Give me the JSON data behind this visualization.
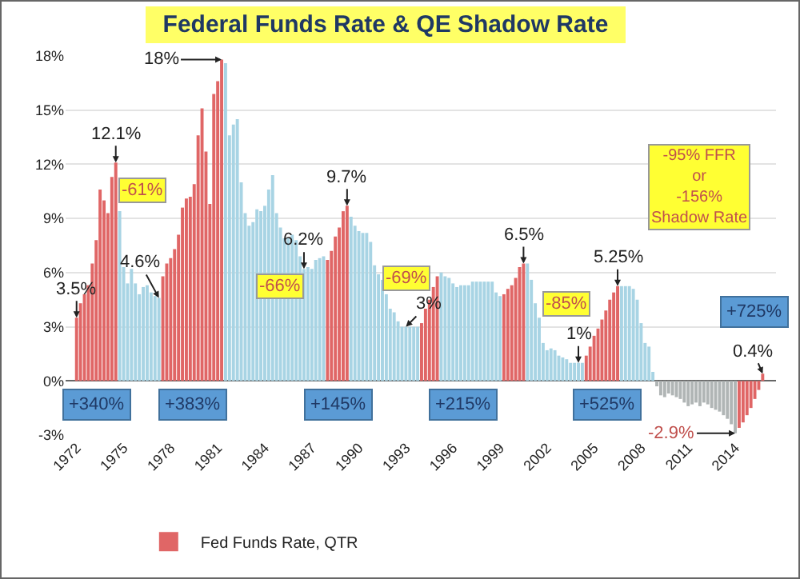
{
  "chart_data": {
    "type": "bar",
    "title": "Federal Funds Rate & QE Shadow Rate",
    "series": [
      {
        "name": "Fed Funds Rate, QTR",
        "x": [
          1972,
          1972.25,
          1972.5,
          1972.75,
          1973,
          1973.25,
          1973.5,
          1973.75,
          1974,
          1974.25,
          1974.5,
          1974.75,
          1975,
          1975.25,
          1975.5,
          1975.75,
          1976,
          1976.25,
          1976.5,
          1976.75,
          1977,
          1977.25,
          1977.5,
          1977.75,
          1978,
          1978.25,
          1978.5,
          1978.75,
          1979,
          1979.25,
          1979.5,
          1979.75,
          1980,
          1980.25,
          1980.5,
          1980.75,
          1981,
          1981.25,
          1981.5,
          1981.75,
          1982,
          1982.25,
          1982.5,
          1982.75,
          1983,
          1983.25,
          1983.5,
          1983.75,
          1984,
          1984.25,
          1984.5,
          1984.75,
          1985,
          1985.25,
          1985.5,
          1985.75,
          1986,
          1986.25,
          1986.5,
          1986.75,
          1987,
          1987.25,
          1987.5,
          1987.75,
          1988,
          1988.25,
          1988.5,
          1988.75,
          1989,
          1989.25,
          1989.5,
          1989.75,
          1990,
          1990.25,
          1990.5,
          1990.75,
          1991,
          1991.25,
          1991.5,
          1991.75,
          1992,
          1992.25,
          1992.5,
          1992.75,
          1993,
          1993.25,
          1993.5,
          1993.75,
          1994,
          1994.25,
          1994.5,
          1994.75,
          1995,
          1995.25,
          1995.5,
          1995.75,
          1996,
          1996.25,
          1996.5,
          1996.75,
          1997,
          1997.25,
          1997.5,
          1997.75,
          1998,
          1998.25,
          1998.5,
          1998.75,
          1999,
          1999.25,
          1999.5,
          1999.75,
          2000,
          2000.25,
          2000.5,
          2000.75,
          2001,
          2001.25,
          2001.5,
          2001.75,
          2002,
          2002.25,
          2002.5,
          2002.75,
          2003,
          2003.25,
          2003.5,
          2003.75,
          2004,
          2004.25,
          2004.5,
          2004.75,
          2005,
          2005.25,
          2005.5,
          2005.75,
          2006,
          2006.25,
          2006.5,
          2006.75,
          2007,
          2007.25,
          2007.5,
          2007.75,
          2008,
          2008.25,
          2008.5,
          2008.75
        ],
        "values": [
          3.5,
          4.3,
          4.8,
          5.3,
          6.5,
          7.8,
          10.6,
          10,
          9.3,
          11.3,
          12.1,
          9.4,
          6.3,
          5.4,
          6.2,
          5.4,
          4.8,
          5.2,
          5.3,
          4.9,
          4.7,
          4.6,
          5.8,
          6.5,
          6.8,
          7.3,
          8.1,
          9.6,
          10.1,
          10.2,
          10.9,
          13.6,
          15.1,
          12.7,
          9.8,
          15.9,
          16.6,
          17.8,
          17.6,
          13.6,
          14.2,
          14.5,
          11,
          9.3,
          8.6,
          8.8,
          9.5,
          9.4,
          9.7,
          10.6,
          11.4,
          9.3,
          8.5,
          7.9,
          7.9,
          8.1,
          7.8,
          6.9,
          6.2,
          6.3,
          6.2,
          6.7,
          6.8,
          6.9,
          6.7,
          7.2,
          8,
          8.5,
          9.4,
          9.7,
          9.1,
          8.6,
          8.3,
          8.2,
          8.2,
          7.7,
          6.4,
          5.9,
          5.6,
          4.8,
          4,
          3.8,
          3.3,
          3,
          3,
          3,
          3,
          3,
          3.2,
          4,
          4.5,
          5.2,
          5.8,
          6,
          5.8,
          5.7,
          5.4,
          5.2,
          5.3,
          5.3,
          5.3,
          5.5,
          5.5,
          5.5,
          5.5,
          5.5,
          5.5,
          4.9,
          4.7,
          4.8,
          5.1,
          5.3,
          5.7,
          6.3,
          6.5,
          6.5,
          5.6,
          4.3,
          3.5,
          2.1,
          1.7,
          1.8,
          1.7,
          1.4,
          1.3,
          1.2,
          1,
          1,
          1,
          1,
          1.4,
          1.9,
          2.5,
          2.9,
          3.4,
          3.9,
          4.5,
          4.9,
          5.25,
          5.25,
          5.25,
          5.25,
          5.1,
          4.5,
          3.2,
          2.1,
          1.9,
          0.5
        ],
        "colors": [
          "#e06666",
          "#e06666",
          "#e06666",
          "#e06666",
          "#e06666",
          "#e06666",
          "#e06666",
          "#e06666",
          "#e06666",
          "#e06666",
          "#e06666",
          "#a8d4e4",
          "#a8d4e4",
          "#a8d4e4",
          "#a8d4e4",
          "#a8d4e4",
          "#a8d4e4",
          "#a8d4e4",
          "#a8d4e4",
          "#a8d4e4",
          "#a8d4e4",
          "#a8d4e4",
          "#e06666",
          "#e06666",
          "#e06666",
          "#e06666",
          "#e06666",
          "#e06666",
          "#e06666",
          "#e06666",
          "#e06666",
          "#e06666",
          "#e06666",
          "#e06666",
          "#e06666",
          "#e06666",
          "#e06666",
          "#e06666",
          "#a8d4e4",
          "#a8d4e4",
          "#a8d4e4",
          "#a8d4e4",
          "#a8d4e4",
          "#a8d4e4",
          "#a8d4e4",
          "#a8d4e4",
          "#a8d4e4",
          "#a8d4e4",
          "#a8d4e4",
          "#a8d4e4",
          "#a8d4e4",
          "#a8d4e4",
          "#a8d4e4",
          "#a8d4e4",
          "#a8d4e4",
          "#a8d4e4",
          "#a8d4e4",
          "#a8d4e4",
          "#a8d4e4",
          "#a8d4e4",
          "#a8d4e4",
          "#a8d4e4",
          "#a8d4e4",
          "#a8d4e4",
          "#e06666",
          "#e06666",
          "#e06666",
          "#e06666",
          "#e06666",
          "#e06666",
          "#a8d4e4",
          "#a8d4e4",
          "#a8d4e4",
          "#a8d4e4",
          "#a8d4e4",
          "#a8d4e4",
          "#a8d4e4",
          "#a8d4e4",
          "#a8d4e4",
          "#a8d4e4",
          "#a8d4e4",
          "#a8d4e4",
          "#a8d4e4",
          "#a8d4e4",
          "#a8d4e4",
          "#a8d4e4",
          "#a8d4e4",
          "#a8d4e4",
          "#e06666",
          "#e06666",
          "#e06666",
          "#e06666",
          "#e06666",
          "#a8d4e4",
          "#a8d4e4",
          "#a8d4e4",
          "#a8d4e4",
          "#a8d4e4",
          "#a8d4e4",
          "#a8d4e4",
          "#a8d4e4",
          "#a8d4e4",
          "#a8d4e4",
          "#a8d4e4",
          "#a8d4e4",
          "#a8d4e4",
          "#a8d4e4",
          "#a8d4e4",
          "#a8d4e4",
          "#e06666",
          "#e06666",
          "#e06666",
          "#e06666",
          "#e06666",
          "#e06666",
          "#a8d4e4",
          "#a8d4e4",
          "#a8d4e4",
          "#a8d4e4",
          "#a8d4e4",
          "#a8d4e4",
          "#a8d4e4",
          "#a8d4e4",
          "#a8d4e4",
          "#a8d4e4",
          "#a8d4e4",
          "#a8d4e4",
          "#a8d4e4",
          "#a8d4e4",
          "#a8d4e4",
          "#e06666",
          "#e06666",
          "#e06666",
          "#e06666",
          "#e06666",
          "#e06666",
          "#e06666",
          "#e06666",
          "#e06666",
          "#a8d4e4",
          "#a8d4e4",
          "#a8d4e4",
          "#a8d4e4",
          "#a8d4e4",
          "#a8d4e4",
          "#a8d4e4",
          "#a8d4e4",
          "#a8d4e4"
        ]
      },
      {
        "x": [
          2009,
          2009.25,
          2009.5,
          2009.75,
          2010,
          2010.25,
          2010.5,
          2010.75,
          2011,
          2011.25,
          2011.5,
          2011.75,
          2012,
          2012.25,
          2012.5,
          2012.75,
          2013,
          2013.25,
          2013.5,
          2013.75,
          2014,
          2014.25,
          2014.5,
          2014.75,
          2015,
          2015.25,
          2015.5,
          2015.75
        ],
        "values": [
          -0.3,
          -0.8,
          -0.9,
          -0.7,
          -0.8,
          -0.9,
          -1,
          -1.2,
          -1.4,
          -1.3,
          -1.2,
          -1.4,
          -1.2,
          -1.3,
          -1.5,
          -1.6,
          -1.7,
          -1.9,
          -2.1,
          -2.4,
          -2.9,
          -2.6,
          -2.3,
          -1.9,
          -1.5,
          -1,
          -0.5,
          0.4
        ],
        "colors": [
          "#b0b5b5",
          "#b0b5b5",
          "#b0b5b5",
          "#b0b5b5",
          "#b0b5b5",
          "#b0b5b5",
          "#b0b5b5",
          "#b0b5b5",
          "#b0b5b5",
          "#b0b5b5",
          "#b0b5b5",
          "#b0b5b5",
          "#b0b5b5",
          "#b0b5b5",
          "#b0b5b5",
          "#b0b5b5",
          "#b0b5b5",
          "#b0b5b5",
          "#b0b5b5",
          "#b0b5b5",
          "#b0b5b5",
          "#e06666",
          "#e06666",
          "#e06666",
          "#e06666",
          "#e06666",
          "#e06666",
          "#e06666"
        ]
      }
    ],
    "xlim": [
      1971.3,
      2016.6
    ],
    "xticks": [
      1972,
      1975,
      1978,
      1981,
      1984,
      1987,
      1990,
      1993,
      1996,
      1999,
      2002,
      2005,
      2008,
      2011,
      2014
    ],
    "ylim": [
      -3,
      18
    ],
    "yticks": [
      {
        "value": -3,
        "label": "-3%"
      },
      {
        "value": 0,
        "label": "0%"
      },
      {
        "value": 3,
        "label": "3%"
      },
      {
        "value": 6,
        "label": "6%"
      },
      {
        "value": 9,
        "label": "9%"
      },
      {
        "value": 12,
        "label": "12%"
      },
      {
        "value": 15,
        "label": "15%"
      },
      {
        "value": 18,
        "label": "18%"
      }
    ],
    "grid": "y",
    "legend": "bottom left",
    "annotations": [
      {
        "text": "12.1%",
        "x": 1974.5,
        "y": 12.1
      },
      {
        "text": "18%",
        "x": 1981.25,
        "y": 17.8
      },
      {
        "text": "9.7%",
        "x": 1989.25,
        "y": 9.7
      },
      {
        "text": "6.2%",
        "x": 1986.5,
        "y": 6.2
      },
      {
        "text": "4.6%",
        "x": 1977.25,
        "y": 4.6
      },
      {
        "text": "3.5%",
        "x": 1972,
        "y": 3.5
      },
      {
        "text": "3%",
        "x": 1993,
        "y": 3
      },
      {
        "text": "6.5%",
        "x": 2000.5,
        "y": 6.5
      },
      {
        "text": "1%",
        "x": 2004,
        "y": 1
      },
      {
        "text": "5.25%",
        "x": 2006.5,
        "y": 5.25
      },
      {
        "text": "0.4%",
        "x": 2015.75,
        "y": 0.4
      },
      {
        "text": "-2.9%",
        "x": 2014,
        "y": -2.9
      },
      {
        "text": "-61%",
        "x": 1976.2,
        "y": 10.6
      },
      {
        "text": "-66%",
        "x": 1985,
        "y": 5.2
      },
      {
        "text": "-69%",
        "x": 1993,
        "y": 5.7
      },
      {
        "text": "-85%",
        "x": 2003.2,
        "y": 4.3
      },
      {
        "text": "+340%",
        "x": 1973.3,
        "y": -1.3
      },
      {
        "text": "+383%",
        "x": 1979.4,
        "y": -1.3
      },
      {
        "text": "+145%",
        "x": 1988.7,
        "y": -1.3
      },
      {
        "text": "+215%",
        "x": 1996.7,
        "y": -1.3
      },
      {
        "text": "+525%",
        "x": 2005.8,
        "y": -1.3
      },
      {
        "text": "+725%",
        "x": 2015.2,
        "y": 3.8
      },
      "-95% FFR\nor\n-156%\nShadow Rate"
    ]
  }
}
